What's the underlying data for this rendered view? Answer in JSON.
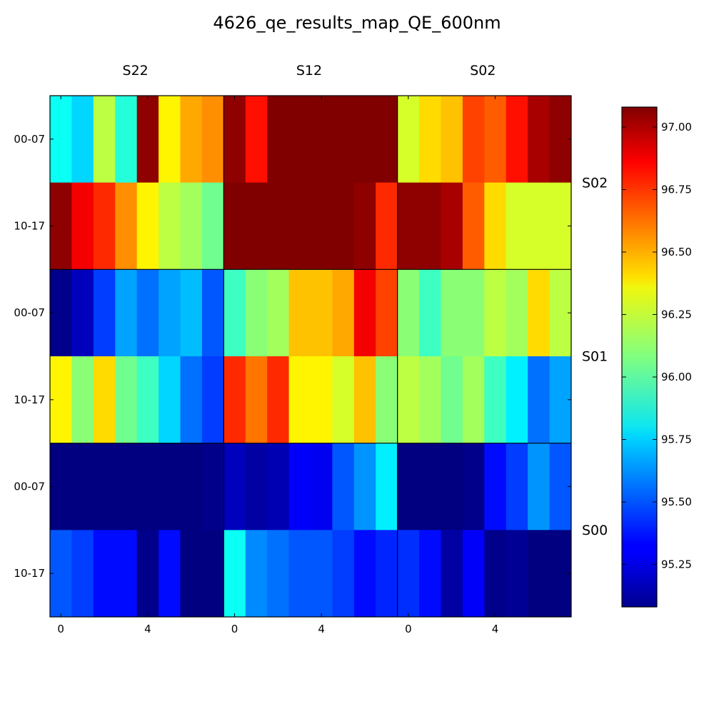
{
  "chart_data": {
    "type": "heatmap",
    "title": "4626_qe_results_map_QE_600nm",
    "colormap": "jet",
    "value_range": [
      95.08,
      97.08
    ],
    "column_groups": [
      "S22",
      "S12",
      "S02"
    ],
    "row_groups": [
      "S02",
      "S01",
      "S00"
    ],
    "row_labels": [
      "00-07",
      "10-17"
    ],
    "x_ticks": [
      "0",
      "4"
    ],
    "x_tick_positions": [
      0,
      4
    ],
    "colorbar_ticks": [
      {
        "value": 95.25,
        "label": "95.25"
      },
      {
        "value": 95.5,
        "label": "95.50"
      },
      {
        "value": 95.75,
        "label": "95.75"
      },
      {
        "value": 96.0,
        "label": "96.00"
      },
      {
        "value": 96.25,
        "label": "96.25"
      },
      {
        "value": 96.5,
        "label": "96.50"
      },
      {
        "value": 96.75,
        "label": "96.75"
      },
      {
        "value": 97.0,
        "label": "97.00"
      }
    ],
    "grid": false,
    "colorbar_position": "right",
    "values": [
      [
        95.85,
        95.75,
        96.2,
        95.9,
        97.05,
        96.35,
        96.5,
        96.55,
        97.05,
        96.8,
        97.1,
        97.1,
        97.1,
        97.1,
        97.1,
        97.1,
        96.25,
        96.4,
        96.45,
        96.7,
        96.65,
        96.8,
        97.0,
        97.05
      ],
      [
        97.05,
        96.85,
        96.75,
        96.55,
        96.35,
        96.2,
        96.15,
        96.05,
        97.1,
        97.1,
        97.1,
        97.1,
        97.1,
        97.1,
        97.05,
        96.75,
        97.05,
        97.05,
        97.0,
        96.65,
        96.4,
        96.25,
        96.25,
        96.25
      ],
      [
        95.1,
        95.2,
        95.45,
        95.65,
        95.55,
        95.65,
        95.7,
        95.5,
        95.95,
        96.1,
        96.15,
        96.45,
        96.45,
        96.5,
        96.85,
        96.7,
        96.1,
        95.95,
        96.1,
        96.1,
        96.2,
        96.15,
        96.4,
        96.2
      ],
      [
        96.35,
        96.1,
        96.4,
        96.05,
        95.95,
        95.75,
        95.55,
        95.45,
        96.75,
        96.6,
        96.75,
        96.35,
        96.35,
        96.25,
        96.45,
        96.1,
        96.2,
        96.15,
        96.05,
        96.15,
        95.95,
        95.8,
        95.55,
        95.65
      ],
      [
        95.08,
        95.08,
        95.08,
        95.08,
        95.08,
        95.08,
        95.08,
        95.1,
        95.2,
        95.15,
        95.18,
        95.32,
        95.3,
        95.5,
        95.62,
        95.8,
        95.08,
        95.08,
        95.08,
        95.1,
        95.35,
        95.45,
        95.62,
        95.5
      ],
      [
        95.5,
        95.45,
        95.35,
        95.35,
        95.1,
        95.35,
        95.08,
        95.08,
        95.85,
        95.6,
        95.55,
        95.5,
        95.5,
        95.45,
        95.35,
        95.4,
        95.42,
        95.35,
        95.15,
        95.32,
        95.1,
        95.12,
        95.08,
        95.08
      ]
    ]
  }
}
